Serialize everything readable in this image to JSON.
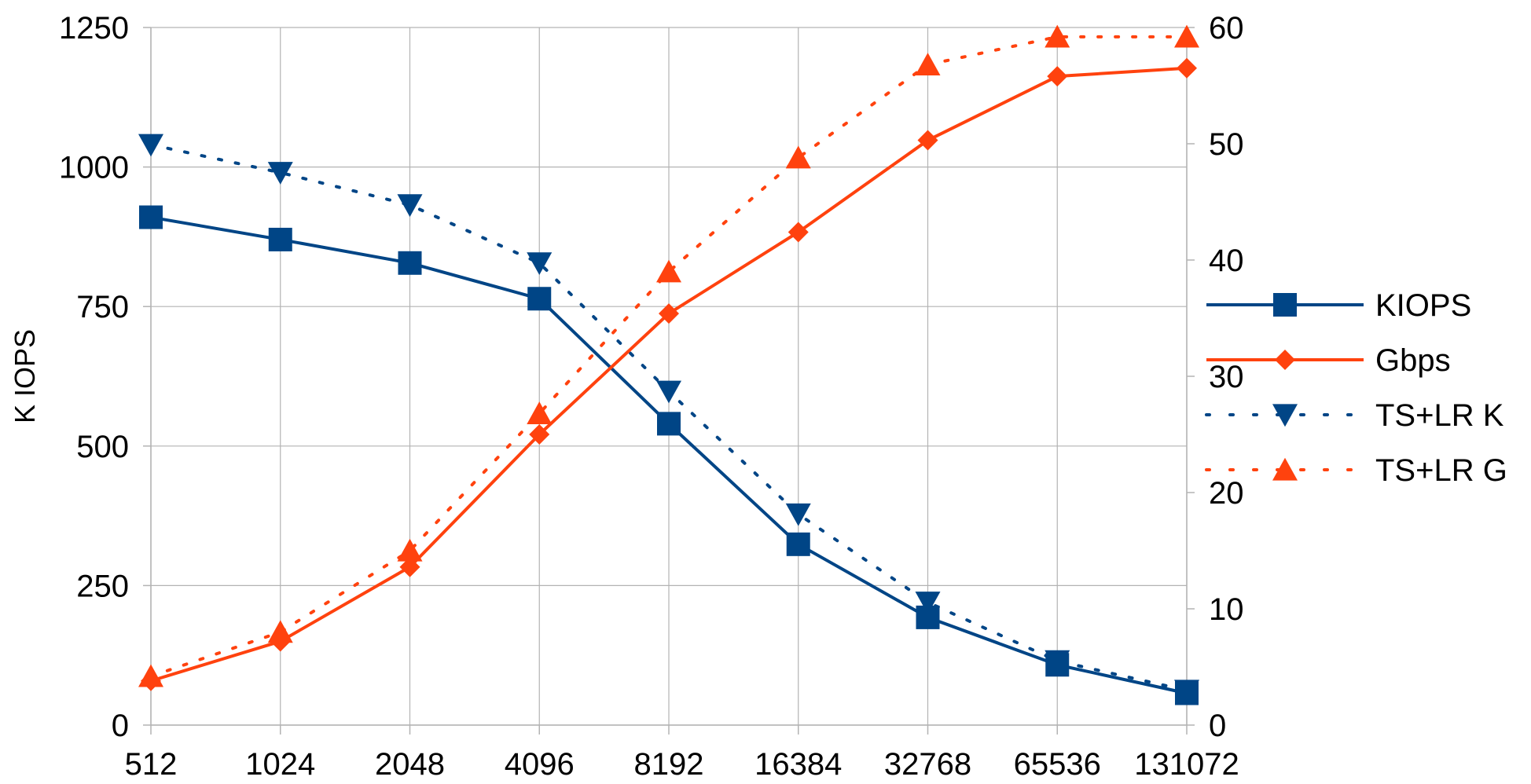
{
  "chart_data": {
    "type": "line",
    "title": "",
    "xlabel": "",
    "ylabel": "K IOPS",
    "y2label": "",
    "categories": [
      "512",
      "1024",
      "2048",
      "4096",
      "8192",
      "16384",
      "32768",
      "65536",
      "131072"
    ],
    "y_left": {
      "min": 0,
      "max": 1250,
      "ticks": [
        "0",
        "250",
        "500",
        "750",
        "1000",
        "1250"
      ]
    },
    "y_right": {
      "min": 0,
      "max": 60,
      "ticks": [
        "0",
        "10",
        "20",
        "30",
        "40",
        "50",
        "60"
      ]
    },
    "grid": true,
    "legend_position": "right",
    "series": [
      {
        "name": "KIOPS",
        "axis": "left",
        "color": "#004586",
        "line": "solid",
        "marker": "square",
        "values": [
          910,
          870,
          828,
          764,
          540,
          324,
          193,
          108,
          57
        ]
      },
      {
        "name": "Gbps",
        "axis": "right",
        "color": "#ff420e",
        "line": "solid",
        "marker": "diamond",
        "values": [
          3.8,
          7.2,
          13.6,
          25.0,
          35.4,
          42.4,
          50.3,
          55.8,
          56.5
        ]
      },
      {
        "name": "TS+LR K",
        "axis": "left",
        "color": "#004586",
        "line": "dotted",
        "marker": "triangle-down",
        "values": [
          1040,
          990,
          932,
          828,
          598,
          378,
          220,
          115,
          62
        ]
      },
      {
        "name": "TS+LR G",
        "axis": "right",
        "color": "#ff420e",
        "line": "dotted",
        "marker": "triangle-up",
        "values": [
          4.2,
          8.0,
          15.0,
          26.8,
          39.0,
          48.8,
          56.8,
          59.2,
          59.2
        ]
      }
    ]
  }
}
